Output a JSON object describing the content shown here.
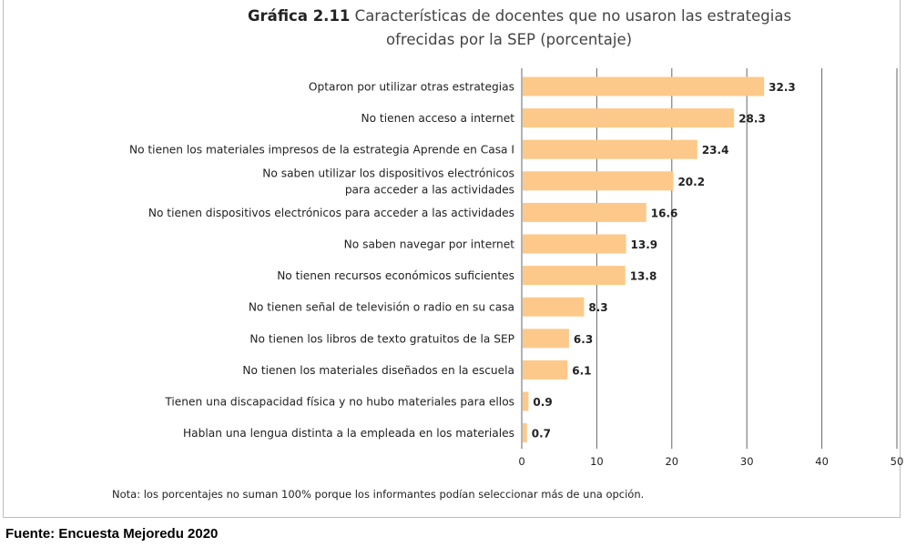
{
  "title": {
    "prefix": "Gráfica 2.11",
    "line1": "Características de docentes que no usaron las estrategias",
    "line2": "ofrecidas por la SEP (porcentaje)"
  },
  "note": "Nota: los porcentajes no suman 100% porque los informantes podían seleccionar más de una opción.",
  "source": "Fuente: Encuesta Mejoredu 2020",
  "colors": {
    "bar": "#fcc98a",
    "grid": "#666666",
    "text": "#222222"
  },
  "chart_data": {
    "type": "bar",
    "orientation": "horizontal",
    "title": "Características de docentes que no usaron las estrategias ofrecidas por la SEP (porcentaje)",
    "xlim": [
      0,
      50
    ],
    "xticks": [
      0,
      10,
      20,
      30,
      40,
      50
    ],
    "grid": true,
    "categories": [
      [
        "Optaron por utilizar otras estrategias"
      ],
      [
        "No tienen acceso a internet"
      ],
      [
        "No tienen los materiales impresos de la estrategia Aprende en Casa I"
      ],
      [
        "No saben utilizar los dispositivos electrónicos",
        "para acceder a las actividades"
      ],
      [
        "No tienen dispositivos electrónicos para acceder a las actividades"
      ],
      [
        "No saben navegar por internet"
      ],
      [
        "No tienen recursos económicos suficientes"
      ],
      [
        "No tienen señal de televisión o radio en su casa"
      ],
      [
        "No tienen los libros de texto gratuitos de la SEP"
      ],
      [
        "No tienen los materiales diseñados en la escuela"
      ],
      [
        "Tienen una discapacidad física y no hubo materiales para ellos"
      ],
      [
        "Hablan una lengua distinta a la empleada en los materiales"
      ]
    ],
    "values": [
      32.3,
      28.3,
      23.4,
      20.2,
      16.6,
      13.9,
      13.8,
      8.3,
      6.3,
      6.1,
      0.9,
      0.7
    ],
    "value_labels": [
      "32.3",
      "28.3",
      "23.4",
      "20.2",
      "16.6",
      "13.9",
      "13.8",
      "8.3",
      "6.3",
      "6.1",
      "0.9",
      "0.7"
    ]
  }
}
